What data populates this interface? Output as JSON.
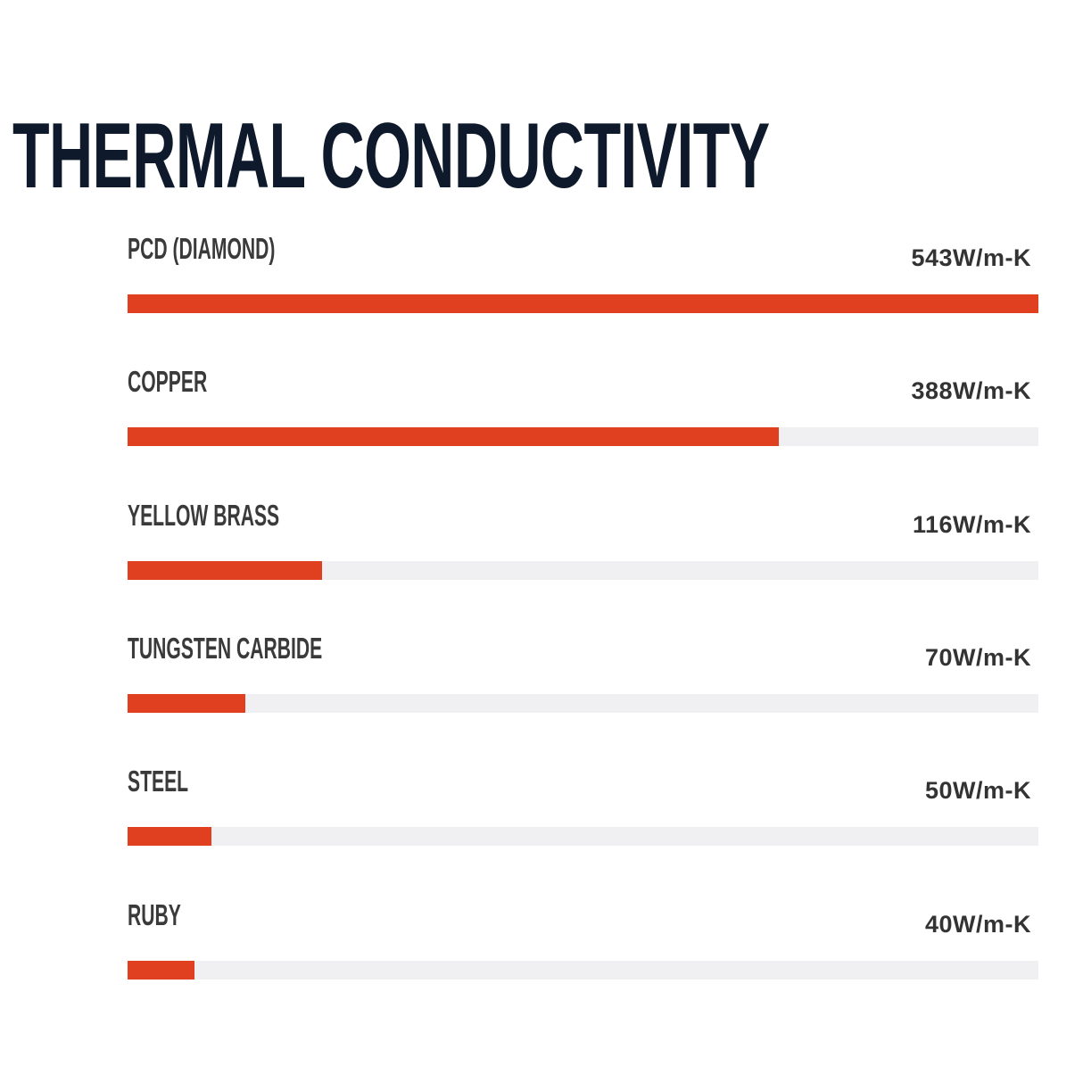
{
  "chart_data": {
    "type": "bar",
    "orientation": "horizontal",
    "title": "THERMAL CONDUCTIVITY",
    "unit": "W/m-K",
    "xlim": [
      0,
      543
    ],
    "grid": false,
    "colors": {
      "bar": "#e0401f",
      "track": "#f0f0f2",
      "title": "#0e1a2b"
    },
    "categories": [
      "PCD (DIAMOND)",
      "COPPER",
      "YELLOW BRASS",
      "TUNGSTEN CARBIDE",
      "STEEL",
      "RUBY"
    ],
    "values": [
      543,
      388,
      116,
      70,
      50,
      40
    ],
    "value_labels": [
      "543W/m-K",
      "388W/m-K",
      "116W/m-K",
      "70W/m-K",
      "50W/m-K",
      "40W/m-K"
    ]
  }
}
